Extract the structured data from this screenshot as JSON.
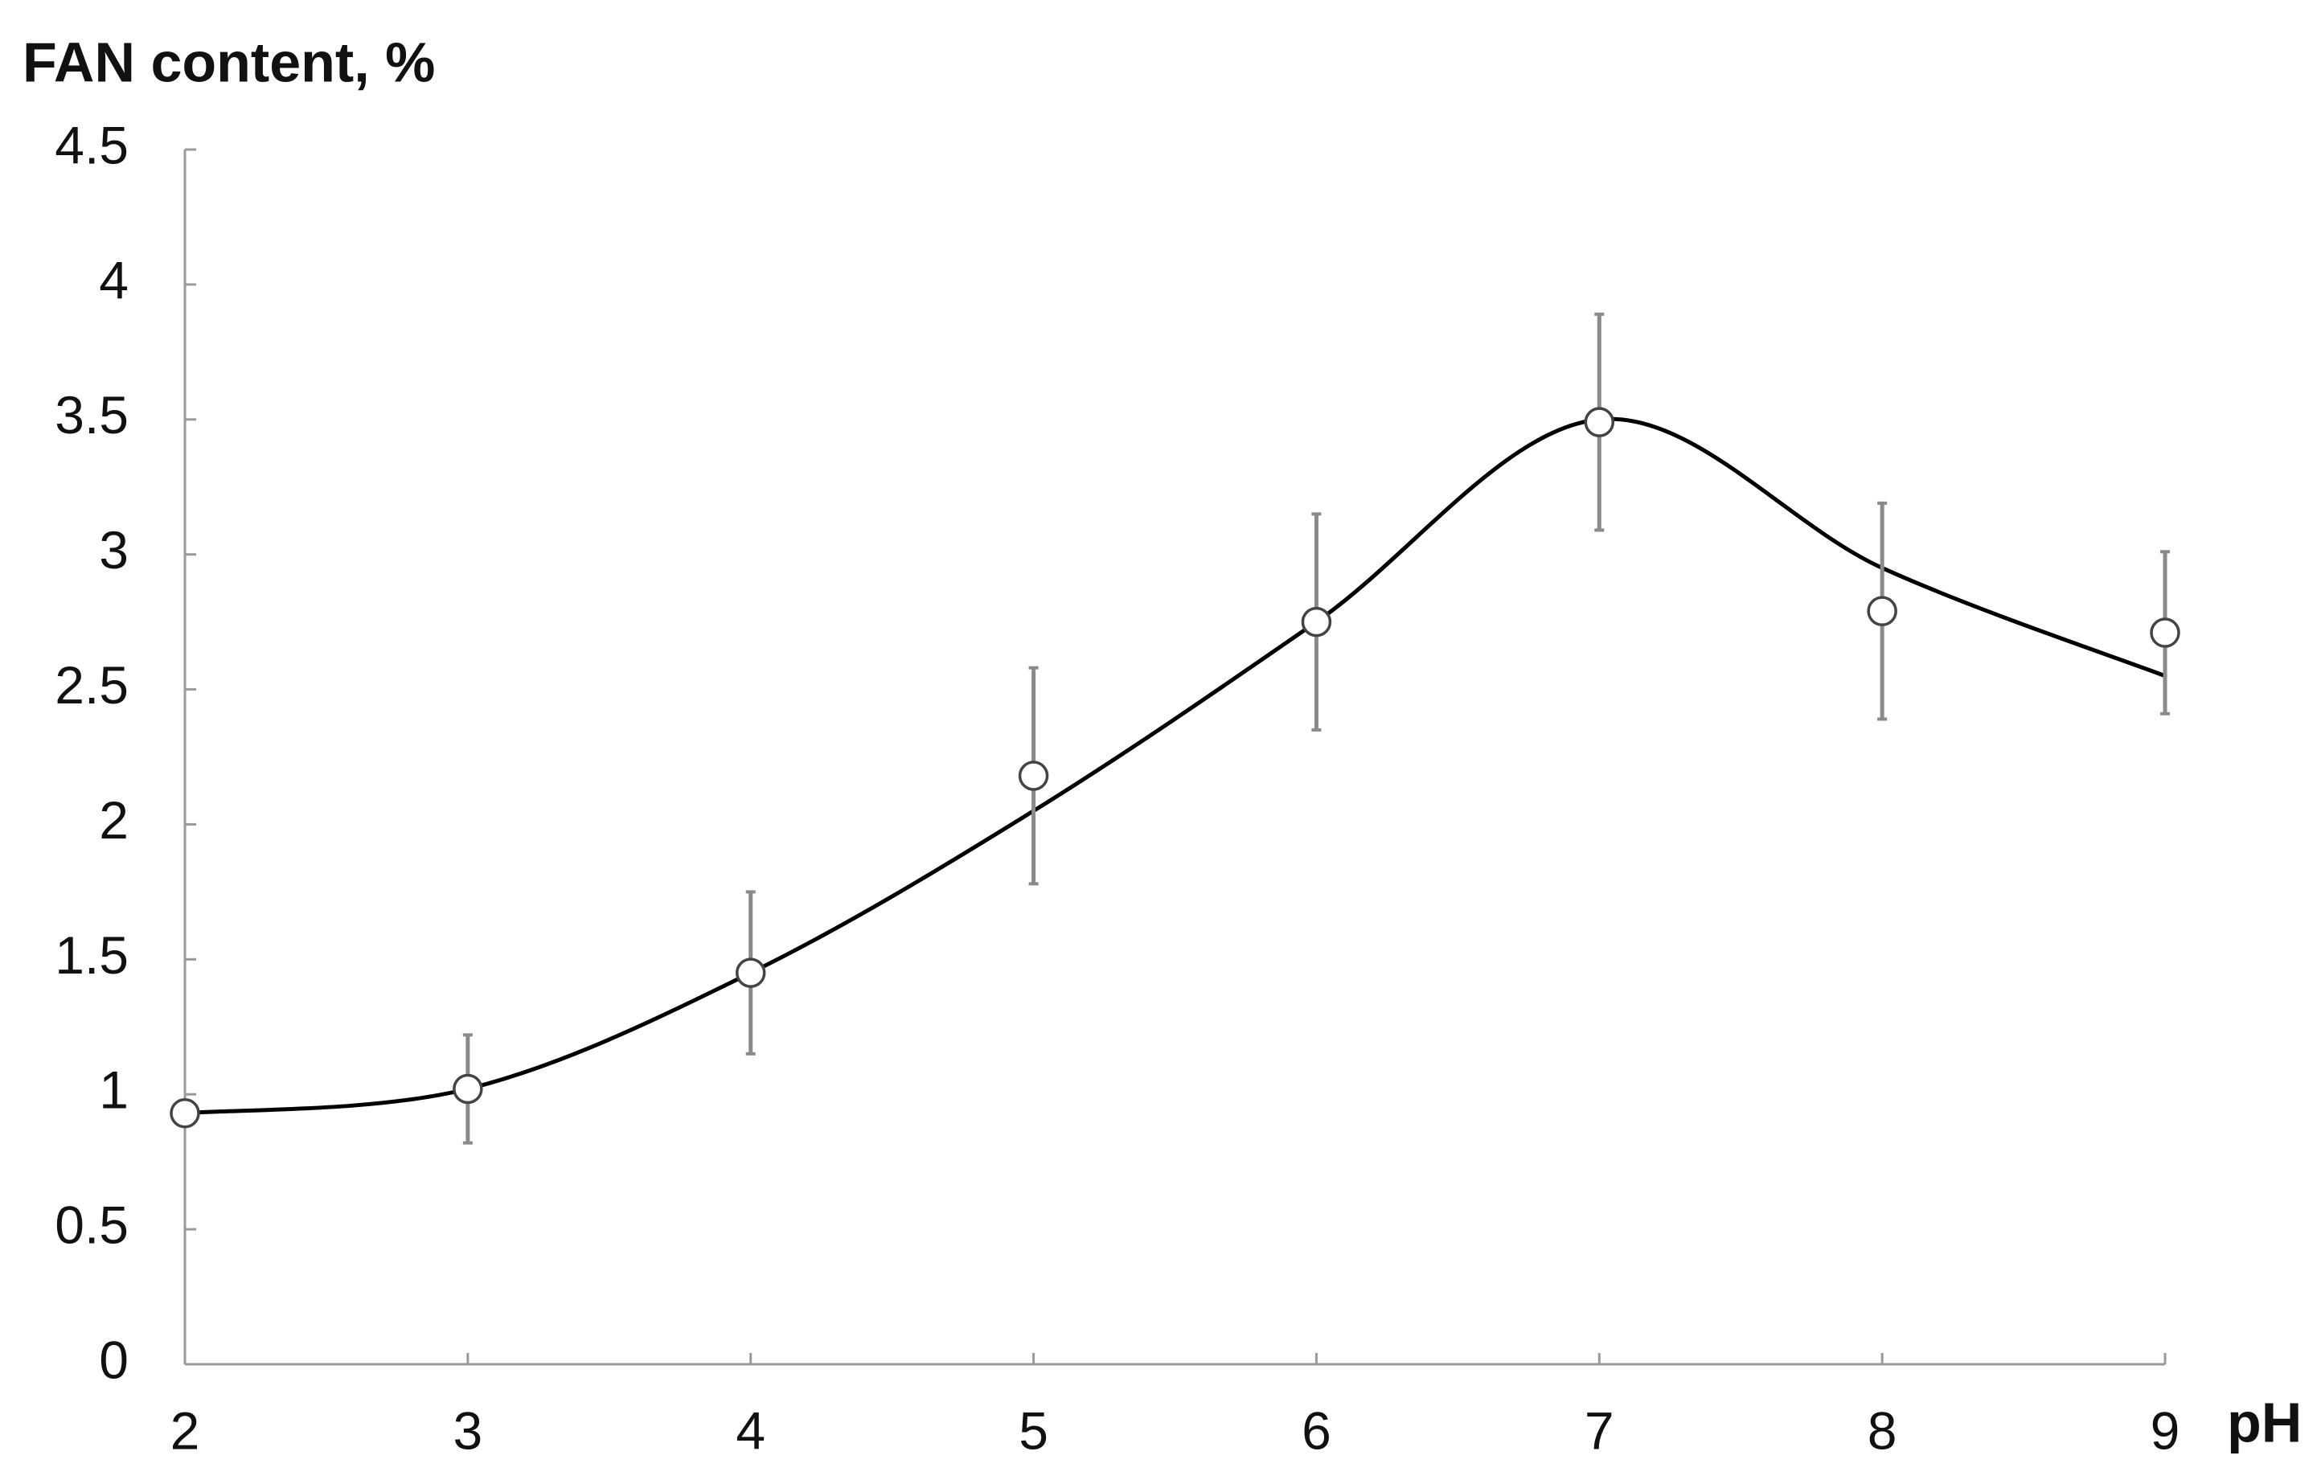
{
  "chart_data": {
    "type": "scatter",
    "ylabel": "FAN content, %",
    "xlabel": "pH",
    "x": [
      2,
      3,
      4,
      5,
      6,
      7,
      8,
      9
    ],
    "values": [
      0.93,
      1.02,
      1.45,
      2.18,
      2.75,
      3.49,
      2.79,
      2.71
    ],
    "errors": [
      null,
      0.2,
      0.3,
      0.4,
      0.4,
      0.4,
      0.4,
      0.3
    ],
    "fit": [
      0.93,
      1.02,
      1.45,
      2.05,
      2.75,
      3.5,
      2.95,
      2.55
    ],
    "xlim": [
      2,
      9
    ],
    "xticks": [
      2,
      3,
      4,
      5,
      6,
      7,
      8,
      9
    ],
    "ylim": [
      0,
      4.5
    ],
    "yticks": [
      0,
      0.5,
      1,
      1.5,
      2,
      2.5,
      3,
      3.5,
      4,
      4.5
    ],
    "grid": false,
    "marker_color": "#444444",
    "error_color": "#8a8a8a",
    "fit_color": "#000000",
    "axis_color": "#9a9a9a"
  }
}
